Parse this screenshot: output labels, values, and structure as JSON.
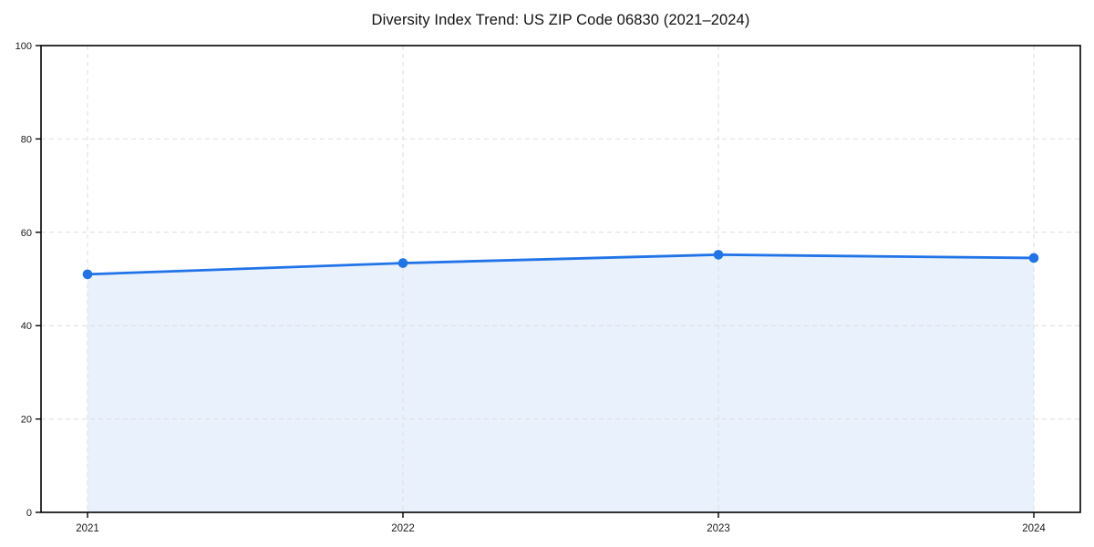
{
  "page": {
    "background": "#ffffff"
  },
  "chart_data": {
    "type": "line",
    "title": "Diversity Index Trend: US ZIP Code 06830 (2021–2024)",
    "categories": [
      "2021",
      "2022",
      "2023",
      "2024"
    ],
    "values": [
      51.0,
      53.4,
      55.2,
      54.5
    ],
    "xlabel": "",
    "ylabel": "",
    "ylim": [
      0,
      100
    ],
    "yticks": [
      0,
      20,
      40,
      60,
      80,
      100
    ],
    "grid": "dashed",
    "legend_position": "none",
    "area_fill": true,
    "marker": "circle",
    "colors": {
      "line": "#2173e8",
      "marker": "#2173e8",
      "area": "#e9f1fc",
      "grid": "#dedede",
      "axis": "#000000",
      "tick_text": "#1a1a1a"
    }
  }
}
